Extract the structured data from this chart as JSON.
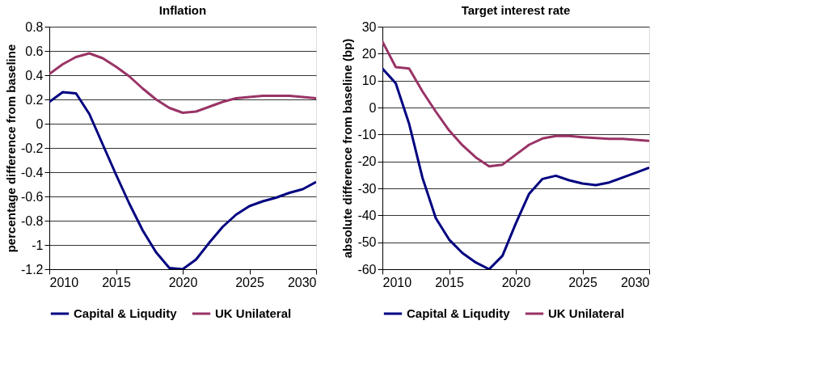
{
  "chart_data": [
    {
      "type": "line",
      "title": "Inflation",
      "ylabel": "percentage difference from baseline",
      "x": [
        2010,
        2011,
        2012,
        2013,
        2014,
        2015,
        2016,
        2017,
        2018,
        2019,
        2020,
        2021,
        2022,
        2023,
        2024,
        2025,
        2026,
        2027,
        2028,
        2029,
        2030
      ],
      "series": [
        {
          "name": "Capital & Liqudity",
          "color": "#000080",
          "values": [
            0.18,
            0.26,
            0.25,
            0.08,
            -0.17,
            -0.42,
            -0.66,
            -0.88,
            -1.06,
            -1.19,
            -1.2,
            -1.12,
            -0.98,
            -0.85,
            -0.75,
            -0.68,
            -0.64,
            -0.61,
            -0.57,
            -0.54,
            -0.48
          ]
        },
        {
          "name": "UK Unilateral",
          "color": "#993366",
          "values": [
            0.41,
            0.49,
            0.55,
            0.58,
            0.54,
            0.47,
            0.39,
            0.29,
            0.2,
            0.13,
            0.09,
            0.1,
            0.14,
            0.18,
            0.21,
            0.22,
            0.23,
            0.23,
            0.23,
            0.22,
            0.21
          ]
        }
      ],
      "xlim": [
        2010,
        2030
      ],
      "xticks": [
        2010,
        2015,
        2020,
        2025,
        2030
      ],
      "ylim": [
        -1.2,
        0.8
      ],
      "yticks": [
        {
          "value": -1.2,
          "label": "-1.2"
        },
        -1,
        {
          "value": -0.8,
          "label": "-0.8"
        },
        {
          "value": -0.6,
          "label": "-0.6"
        },
        {
          "value": -0.4,
          "label": "-0.4"
        },
        {
          "value": -0.2,
          "label": "-0.2"
        },
        0,
        {
          "value": 0.2,
          "label": "0.2"
        },
        {
          "value": 0.4,
          "label": "0.4"
        },
        {
          "value": 0.6,
          "label": "0.6"
        },
        {
          "value": 0.8,
          "label": "0.8"
        }
      ],
      "grid": "y",
      "legend": "bottom",
      "marker": "none",
      "line_style": "solid"
    },
    {
      "type": "line",
      "title": "Target interest rate",
      "ylabel": "absolute difference from baseline (bp)",
      "x": [
        2010,
        2011,
        2012,
        2013,
        2014,
        2015,
        2016,
        2017,
        2018,
        2019,
        2020,
        2021,
        2022,
        2023,
        2024,
        2025,
        2026,
        2027,
        2028,
        2029,
        2030
      ],
      "series": [
        {
          "name": "Capital & Liqudity",
          "color": "#000080",
          "values": [
            14.5,
            9,
            -6,
            -26,
            -41,
            -49,
            -54,
            -57.5,
            -60,
            -55,
            -43,
            -32,
            -26.5,
            -25.3,
            -27,
            -28.2,
            -28.8,
            -27.8,
            -26,
            -24.2,
            -22.3
          ]
        },
        {
          "name": "UK Unilateral",
          "color": "#993366",
          "values": [
            24.5,
            15,
            14.5,
            6,
            -1.5,
            -8.5,
            -14,
            -18.5,
            -21.8,
            -21.2,
            -17.5,
            -13.8,
            -11.5,
            -10.6,
            -10.6,
            -11,
            -11.3,
            -11.6,
            -11.6,
            -12,
            -12.4
          ]
        }
      ],
      "xlim": [
        2010,
        2030
      ],
      "xticks": [
        2010,
        2015,
        2020,
        2025,
        2030
      ],
      "ylim": [
        -60,
        30
      ],
      "yticks": [
        -60,
        -50,
        -40,
        -30,
        -20,
        -10,
        0,
        10,
        20,
        30
      ],
      "grid": "y",
      "legend": "bottom",
      "marker": "none",
      "line_style": "solid"
    }
  ]
}
